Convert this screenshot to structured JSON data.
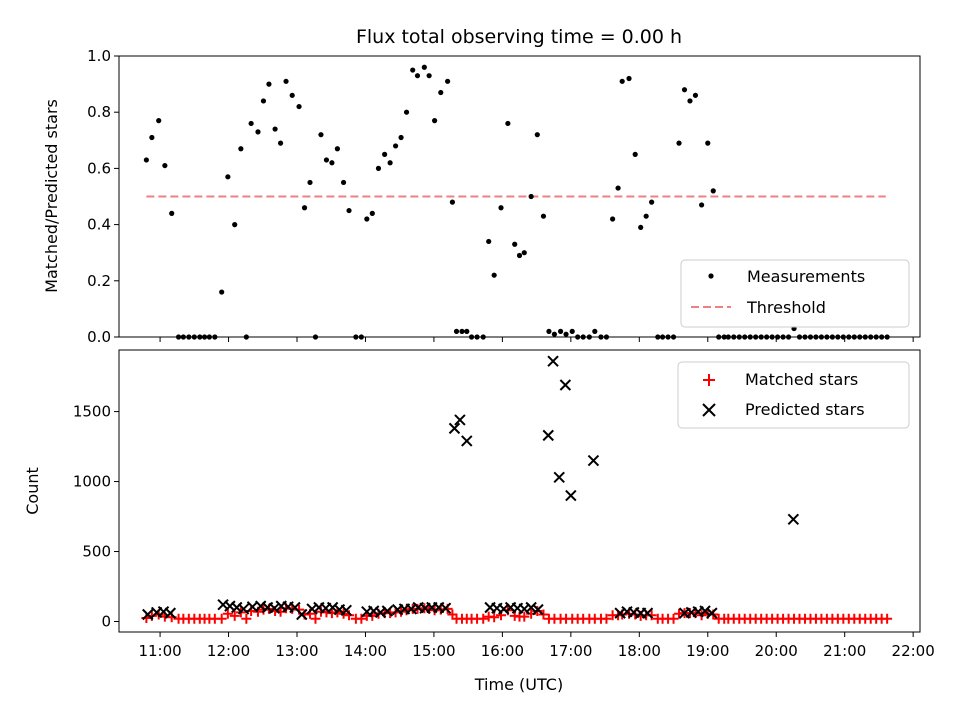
{
  "chart_data": [
    {
      "type": "scatter",
      "title": "Flux total observing time = 0.00 h",
      "ylabel": "Matched/Predicted stars",
      "xlim": [
        10.4,
        22.1
      ],
      "ylim": [
        0,
        1.0
      ],
      "yticks": [
        "0.0",
        "0.2",
        "0.4",
        "0.6",
        "0.8",
        "1.0"
      ],
      "legend_position": "lower-right",
      "series": [
        {
          "name": "Measurements",
          "color": "#000000",
          "x": [
            10.8,
            10.88,
            10.98,
            11.07,
            11.17,
            11.27,
            11.34,
            11.42,
            11.5,
            11.58,
            11.65,
            11.72,
            11.8,
            11.9,
            11.99,
            12.09,
            12.18,
            12.26,
            12.33,
            12.43,
            12.51,
            12.59,
            12.68,
            12.76,
            12.84,
            12.93,
            13.03,
            13.11,
            13.19,
            13.27,
            13.35,
            13.43,
            13.51,
            13.59,
            13.68,
            13.76,
            13.86,
            13.94,
            14.02,
            14.1,
            14.19,
            14.28,
            14.36,
            14.44,
            14.52,
            14.6,
            14.69,
            14.76,
            14.86,
            14.93,
            15.01,
            15.1,
            15.2,
            15.27,
            15.33,
            15.41,
            15.48,
            15.55,
            15.63,
            15.72,
            15.8,
            15.88,
            15.98,
            16.08,
            16.18,
            16.25,
            16.32,
            16.42,
            16.51,
            16.6,
            16.68,
            16.76,
            16.85,
            16.93,
            17.02,
            17.1,
            17.18,
            17.27,
            17.35,
            17.44,
            17.52,
            17.61,
            17.69,
            17.75,
            17.85,
            17.94,
            18.02,
            18.1,
            18.18,
            18.27,
            18.34,
            18.42,
            18.5,
            18.58,
            18.66,
            18.74,
            18.82,
            18.91,
            19.0,
            19.08,
            19.16,
            19.24,
            19.3,
            19.38,
            19.46,
            19.54,
            19.62,
            19.7,
            19.78,
            19.86,
            19.94,
            20.02,
            20.1,
            20.18,
            20.26,
            20.34,
            20.42,
            20.5,
            20.58,
            20.66,
            20.74,
            20.82,
            20.9,
            20.98,
            21.06,
            21.14,
            21.22,
            21.3,
            21.38,
            21.46,
            21.54,
            21.62
          ],
          "y": [
            0.63,
            0.71,
            0.77,
            0.61,
            0.44,
            0.0,
            0.0,
            0.0,
            0.0,
            0.0,
            0.0,
            0.0,
            0.0,
            0.16,
            0.57,
            0.4,
            0.67,
            0.0,
            0.76,
            0.73,
            0.84,
            0.9,
            0.74,
            0.69,
            0.91,
            0.86,
            0.82,
            0.46,
            0.55,
            0.0,
            0.72,
            0.63,
            0.62,
            0.67,
            0.55,
            0.45,
            0.0,
            0.0,
            0.42,
            0.44,
            0.6,
            0.65,
            0.62,
            0.68,
            0.71,
            0.8,
            0.95,
            0.93,
            0.96,
            0.93,
            0.77,
            0.87,
            0.91,
            0.48,
            0.02,
            0.02,
            0.02,
            0.0,
            0.0,
            0.0,
            0.34,
            0.22,
            0.46,
            0.76,
            0.33,
            0.29,
            0.3,
            0.5,
            0.72,
            0.43,
            0.02,
            0.01,
            0.02,
            0.01,
            0.02,
            0.0,
            0.0,
            0.0,
            0.02,
            0.0,
            0.0,
            0.42,
            0.53,
            0.91,
            0.92,
            0.65,
            0.39,
            0.43,
            0.48,
            0.0,
            0.0,
            0.0,
            0.0,
            0.69,
            0.88,
            0.84,
            0.86,
            0.47,
            0.69,
            0.52,
            0.0,
            0.0,
            0.0,
            0.0,
            0.0,
            0.0,
            0.0,
            0.0,
            0.0,
            0.0,
            0.0,
            0.0,
            0.0,
            0.0,
            0.03,
            0.0,
            0.0,
            0.0,
            0.0,
            0.0,
            0.0,
            0.0,
            0.0,
            0.0,
            0.0,
            0.0,
            0.0,
            0.0,
            0.0,
            0.0,
            0.0,
            0.0
          ]
        },
        {
          "name": "Threshold",
          "color": "#f08080",
          "style": "dashed",
          "x": [
            10.8,
            21.6
          ],
          "y": [
            0.5,
            0.5
          ]
        }
      ]
    },
    {
      "type": "scatter",
      "xlabel": "Time (UTC)",
      "ylabel": "Count",
      "xlim": [
        10.4,
        22.1
      ],
      "ylim": [
        -75,
        1940
      ],
      "yticks": [
        "0",
        "500",
        "1000",
        "1500"
      ],
      "xticks": [
        "11:00",
        "12:00",
        "13:00",
        "14:00",
        "15:00",
        "16:00",
        "17:00",
        "18:00",
        "19:00",
        "20:00",
        "21:00",
        "22:00"
      ],
      "legend_position": "upper-right",
      "series": [
        {
          "name": "Matched stars",
          "color": "#ff0000",
          "marker": "plus",
          "x": [
            10.8,
            10.88,
            10.98,
            11.07,
            11.17,
            11.27,
            11.34,
            11.42,
            11.5,
            11.58,
            11.65,
            11.72,
            11.8,
            11.9,
            11.99,
            12.09,
            12.18,
            12.26,
            12.33,
            12.43,
            12.51,
            12.59,
            12.68,
            12.76,
            12.84,
            12.93,
            13.03,
            13.11,
            13.19,
            13.27,
            13.35,
            13.43,
            13.51,
            13.59,
            13.68,
            13.76,
            13.86,
            13.94,
            14.02,
            14.1,
            14.19,
            14.28,
            14.36,
            14.44,
            14.52,
            14.6,
            14.69,
            14.76,
            14.86,
            14.93,
            15.01,
            15.1,
            15.2,
            15.27,
            15.33,
            15.41,
            15.48,
            15.55,
            15.63,
            15.72,
            15.8,
            15.88,
            15.98,
            16.08,
            16.18,
            16.25,
            16.32,
            16.42,
            16.51,
            16.6,
            16.68,
            16.76,
            16.85,
            16.93,
            17.02,
            17.1,
            17.18,
            17.27,
            17.35,
            17.44,
            17.52,
            17.61,
            17.69,
            17.75,
            17.85,
            17.94,
            18.02,
            18.1,
            18.18,
            18.27,
            18.34,
            18.42,
            18.5,
            18.58,
            18.66,
            18.74,
            18.82,
            18.91,
            19.0,
            19.08,
            19.16,
            19.24,
            19.3,
            19.38,
            19.46,
            19.54,
            19.62,
            19.7,
            19.78,
            19.86,
            19.94,
            20.02,
            20.1,
            20.18,
            20.26,
            20.34,
            20.42,
            20.5,
            20.58,
            20.66,
            20.74,
            20.82,
            20.9,
            20.98,
            21.06,
            21.14,
            21.22,
            21.3,
            21.38,
            21.46,
            21.54,
            21.62
          ],
          "y": [
            25,
            40,
            50,
            35,
            30,
            20,
            20,
            20,
            20,
            20,
            20,
            20,
            20,
            20,
            55,
            40,
            65,
            20,
            75,
            70,
            85,
            90,
            75,
            70,
            95,
            90,
            85,
            50,
            55,
            20,
            70,
            65,
            60,
            65,
            55,
            45,
            20,
            20,
            40,
            40,
            55,
            60,
            60,
            65,
            70,
            80,
            90,
            90,
            95,
            90,
            80,
            85,
            90,
            50,
            20,
            20,
            20,
            20,
            20,
            20,
            35,
            30,
            45,
            80,
            40,
            35,
            35,
            55,
            75,
            50,
            20,
            20,
            20,
            20,
            20,
            20,
            20,
            20,
            20,
            20,
            20,
            45,
            45,
            50,
            55,
            50,
            40,
            45,
            45,
            20,
            20,
            20,
            20,
            55,
            60,
            60,
            60,
            45,
            55,
            50,
            20,
            20,
            20,
            20,
            20,
            20,
            20,
            20,
            20,
            20,
            20,
            20,
            20,
            20,
            20,
            20,
            20,
            20,
            20,
            20,
            20,
            20,
            20,
            20,
            20,
            20,
            20,
            20,
            20,
            20,
            20,
            20
          ]
        },
        {
          "name": "Predicted stars",
          "color": "#000000",
          "marker": "cross",
          "x": [
            10.82,
            10.95,
            11.05,
            11.15,
            11.92,
            12.02,
            12.12,
            12.22,
            12.35,
            12.47,
            12.57,
            12.67,
            12.77,
            12.87,
            12.97,
            13.07,
            13.22,
            13.32,
            13.42,
            13.52,
            13.62,
            13.72,
            14.02,
            14.12,
            14.22,
            14.32,
            14.47,
            14.57,
            14.67,
            14.77,
            14.87,
            14.97,
            15.07,
            15.17,
            15.3,
            15.38,
            15.48,
            15.82,
            15.92,
            16.02,
            16.12,
            16.22,
            16.32,
            16.42,
            16.52,
            16.67,
            16.74,
            16.83,
            16.92,
            17.0,
            17.33,
            17.72,
            17.82,
            17.92,
            18.02,
            18.12,
            18.66,
            18.76,
            18.86,
            18.96,
            19.06,
            20.25
          ],
          "y": [
            50,
            65,
            70,
            60,
            120,
            110,
            100,
            90,
            105,
            110,
            100,
            95,
            110,
            105,
            100,
            50,
            90,
            100,
            95,
            100,
            85,
            80,
            70,
            75,
            65,
            75,
            85,
            90,
            90,
            100,
            95,
            100,
            100,
            95,
            1380,
            1440,
            1290,
            100,
            95,
            90,
            100,
            95,
            90,
            100,
            85,
            1330,
            1860,
            1030,
            1690,
            900,
            1150,
            60,
            70,
            65,
            60,
            60,
            60,
            65,
            70,
            75,
            60,
            730
          ]
        }
      ]
    }
  ]
}
